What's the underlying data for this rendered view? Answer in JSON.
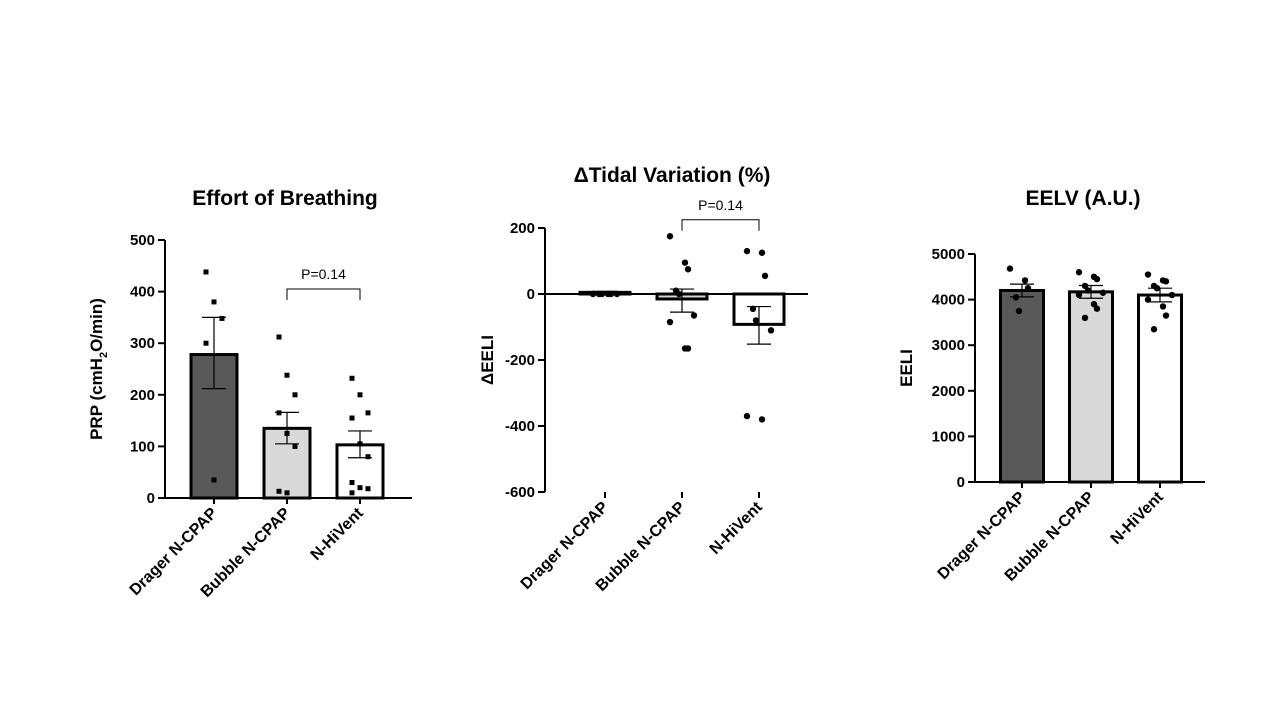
{
  "colors": {
    "dark": "#595959",
    "light": "#d9d9d9",
    "white": "#ffffff",
    "ink": "#000000"
  },
  "chart_data": [
    {
      "type": "bar",
      "title": "Effort of Breathing",
      "ylabel": "PRP (cmH2O/min)",
      "ylabel_parts": [
        "PRP (cmH",
        "2",
        "O/min)"
      ],
      "categories": [
        "Drager N-CPAP",
        "Bubble N-CPAP",
        "N-HiVent"
      ],
      "values": [
        278,
        135,
        103
      ],
      "error_upper": [
        350,
        166,
        130
      ],
      "error_lower": [
        212,
        105,
        78
      ],
      "points": [
        [
          438,
          380,
          348,
          300,
          35
        ],
        [
          312,
          238,
          200,
          165,
          125,
          100,
          13,
          10
        ],
        [
          232,
          200,
          165,
          155,
          105,
          80,
          30,
          20,
          18,
          10
        ]
      ],
      "point_marker": "square",
      "ylim": [
        0,
        500
      ],
      "yticks": [
        0,
        100,
        200,
        300,
        400,
        500
      ],
      "bar_colors": [
        "dark",
        "light",
        "white"
      ],
      "annotation": {
        "text": "P=0.14",
        "from": 1,
        "to": 2,
        "y": 405
      }
    },
    {
      "type": "bar",
      "title": "ΔTidal Variation (%)",
      "ylabel": "ΔEELI",
      "categories": [
        "Drager N-CPAP",
        "Bubble N-CPAP",
        "N-HiVent"
      ],
      "values": [
        5,
        -15,
        -92
      ],
      "error_upper": [
        8,
        15,
        -38
      ],
      "error_lower": [
        2,
        -55,
        -152
      ],
      "points": [
        [
          0,
          0,
          0,
          0,
          0,
          0
        ],
        [
          175,
          95,
          75,
          10,
          0,
          -65,
          -85,
          -165,
          -165
        ],
        [
          130,
          125,
          55,
          -45,
          -80,
          -110,
          -370,
          -380
        ]
      ],
      "point_marker": "circle",
      "ylim": [
        -600,
        200
      ],
      "yticks": [
        -600,
        -400,
        -200,
        0,
        200
      ],
      "bar_colors": [
        "dark",
        "light",
        "white"
      ],
      "annotation": {
        "text": "P=0.14",
        "from": 1,
        "to": 2,
        "y": 225
      }
    },
    {
      "type": "bar",
      "title": "EELV (A.U.)",
      "ylabel": "EELI",
      "categories": [
        "Drager N-CPAP",
        "Bubble N-CPAP",
        "N-HiVent"
      ],
      "values": [
        4200,
        4170,
        4100
      ],
      "error_upper": [
        4340,
        4310,
        4250
      ],
      "error_lower": [
        4060,
        4030,
        3950
      ],
      "points": [
        [
          4680,
          4420,
          4250,
          4050,
          3750
        ],
        [
          4600,
          4500,
          4450,
          4300,
          4200,
          4150,
          4100,
          3900,
          3800,
          3600
        ],
        [
          4550,
          4420,
          4400,
          4300,
          4250,
          4100,
          4000,
          3850,
          3650,
          3350
        ]
      ],
      "point_marker": "circle",
      "ylim": [
        0,
        5000
      ],
      "yticks": [
        0,
        1000,
        2000,
        3000,
        4000,
        5000
      ],
      "bar_colors": [
        "dark",
        "light",
        "white"
      ]
    }
  ]
}
